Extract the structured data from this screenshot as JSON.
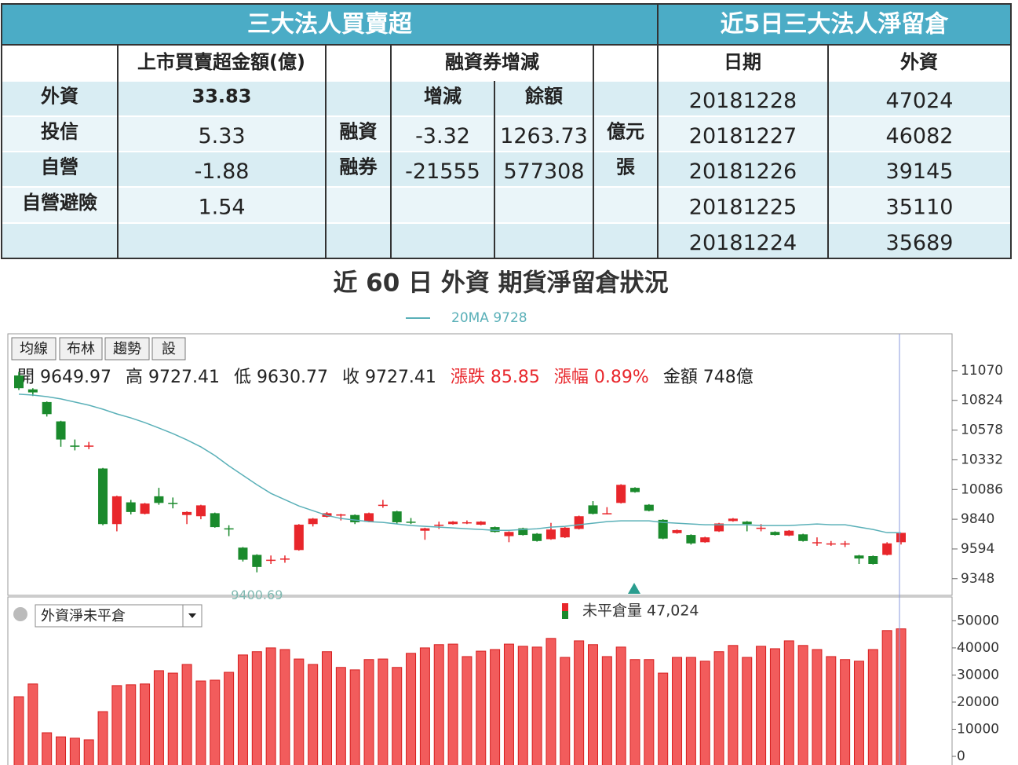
{
  "left_table": {
    "title": "三大法人買賣超",
    "header_1": "上市買賣超金額(億)",
    "header_2": "融資券增減",
    "rows": [
      [
        "外資",
        "33.83",
        null,
        "增減",
        "餘額",
        null
      ],
      [
        "投信",
        "5.33",
        "融資",
        "-3.32",
        "1263.73",
        "億元"
      ],
      [
        "自營",
        "-1.88",
        "融券",
        "-21555",
        "577308",
        "張"
      ],
      [
        "自營避險",
        "1.54",
        null,
        null,
        null,
        null
      ],
      [
        null,
        null,
        null,
        null,
        null,
        null
      ]
    ]
  },
  "right_table": {
    "title": "近5日三大法人淨留倉",
    "headers": [
      "日期",
      "外資"
    ],
    "rows": [
      [
        "20181228",
        47024
      ],
      [
        "20181227",
        46082
      ],
      [
        "20181226",
        39145
      ],
      [
        "20181225",
        35110
      ],
      [
        "20181224",
        35689
      ]
    ]
  },
  "page_title": "近 60 日 外資 期貨淨留倉狀況",
  "buttons": [
    "均線",
    "布林",
    "趨勢",
    "設"
  ],
  "info": [
    {
      "text": "開 9649.97",
      "color": "#222"
    },
    {
      "text": "高 9727.41",
      "color": "#222"
    },
    {
      "text": "低 9630.77",
      "color": "#222"
    },
    {
      "text": "收 9727.41",
      "color": "#222"
    },
    {
      "text": "漲跌 85.85",
      "color": "#e8262b"
    },
    {
      "text": "漲幅  0.89%",
      "color": "#e8262b"
    },
    {
      "text": "金額 748億",
      "color": "#222"
    }
  ],
  "chart_data": [
    {
      "type": "candlestick",
      "up_color": "#e8262b",
      "down_color": "#1a8a2c",
      "ylim": [
        9210,
        11375
      ],
      "yticks": [
        11070,
        10824,
        10578,
        10332,
        10086,
        9840,
        9594,
        9348
      ],
      "low_label": "9400.69",
      "open": [
        11030,
        10915,
        10810,
        10650,
        10450,
        10445,
        10260,
        9800,
        9980,
        9885,
        10030,
        9975,
        9875,
        9865,
        9890,
        9765,
        9605,
        9545,
        9500,
        9510,
        9585,
        9800,
        9860,
        9870,
        9875,
        9820,
        9955,
        9905,
        9820,
        9745,
        9790,
        9800,
        9810,
        9795,
        9775,
        9700,
        9765,
        9720,
        9675,
        9690,
        9760,
        9955,
        9890,
        9975,
        10100,
        9960,
        9835,
        9725,
        9710,
        9650,
        9740,
        9825,
        9820,
        9770,
        9735,
        9705,
        9715,
        9650,
        9640,
        9640,
        9540,
        9535,
        9545,
        9649.97
      ],
      "high": [
        11060,
        10925,
        10815,
        10655,
        10500,
        10480,
        10265,
        10035,
        10000,
        9975,
        10100,
        10020,
        9905,
        9960,
        9895,
        9790,
        9610,
        9550,
        9540,
        9540,
        9800,
        9850,
        9900,
        9885,
        9880,
        9895,
        10000,
        9910,
        9850,
        9770,
        9820,
        9825,
        9830,
        9825,
        9780,
        9740,
        9770,
        9725,
        9810,
        9775,
        9870,
        9990,
        9940,
        10130,
        10105,
        9965,
        9840,
        9755,
        9715,
        9695,
        9810,
        9850,
        9825,
        9800,
        9740,
        9750,
        9720,
        9690,
        9660,
        9660,
        9545,
        9540,
        9650,
        9727.41
      ],
      "low": [
        10910,
        10860,
        10690,
        10440,
        10410,
        10420,
        9790,
        9740,
        9880,
        9880,
        9960,
        9930,
        9800,
        9840,
        9770,
        9700,
        9490,
        9400.69,
        9470,
        9480,
        9580,
        9780,
        9855,
        9830,
        9800,
        9815,
        9935,
        9800,
        9800,
        9670,
        9760,
        9795,
        9800,
        9790,
        9730,
        9650,
        9705,
        9655,
        9670,
        9685,
        9755,
        9880,
        9880,
        9970,
        10060,
        9905,
        9675,
        9720,
        9630,
        9645,
        9735,
        9820,
        9740,
        9740,
        9705,
        9700,
        9655,
        9620,
        9620,
        9610,
        9470,
        9465,
        9540,
        9630.77
      ],
      "close": [
        10925,
        10890,
        10710,
        10500,
        10440,
        10450,
        9800,
        10030,
        9900,
        9970,
        9975,
        9970,
        9900,
        9955,
        9775,
        9760,
        9505,
        9445,
        9505,
        9515,
        9795,
        9845,
        9890,
        9880,
        9815,
        9890,
        9960,
        9815,
        9815,
        9765,
        9795,
        9820,
        9815,
        9820,
        9735,
        9735,
        9710,
        9660,
        9755,
        9770,
        9865,
        9885,
        9890,
        10125,
        10065,
        9910,
        9680,
        9750,
        9640,
        9690,
        9805,
        9845,
        9800,
        9770,
        9710,
        9745,
        9660,
        9650,
        9640,
        9640,
        9515,
        9470,
        9640,
        9727.41
      ],
      "ma": {
        "name": "20MA 9728",
        "color": "#5ab0b8",
        "values": [
          10875,
          10868,
          10855,
          10836,
          10810,
          10784,
          10751,
          10712,
          10679,
          10640,
          10595,
          10549,
          10497,
          10439,
          10367,
          10282,
          10204,
          10126,
          10054,
          10002,
          9950,
          9911,
          9872,
          9846,
          9833,
          9820,
          9814,
          9801,
          9788,
          9781,
          9775,
          9768,
          9761,
          9755,
          9748,
          9748,
          9755,
          9761,
          9775,
          9781,
          9794,
          9807,
          9820,
          9827,
          9827,
          9827,
          9814,
          9807,
          9801,
          9794,
          9794,
          9794,
          9794,
          9788,
          9788,
          9788,
          9794,
          9801,
          9794,
          9794,
          9775,
          9755,
          9729,
          9728
        ]
      }
    },
    {
      "type": "bar",
      "selector": "外資淨未平倉",
      "legend": "未平倉量 47,024",
      "color": "#f25c5c",
      "ylim": [
        0,
        58800
      ],
      "yticks": [
        0,
        10000,
        20000,
        30000,
        40000,
        50000
      ],
      "values": [
        22000,
        26700,
        8700,
        7200,
        6700,
        6100,
        16500,
        26100,
        26400,
        26700,
        31600,
        30700,
        33900,
        27800,
        28100,
        31000,
        37400,
        38600,
        40000,
        39400,
        35900,
        33900,
        38600,
        32800,
        31900,
        35700,
        35900,
        32800,
        38000,
        40000,
        41200,
        41400,
        36800,
        38800,
        39400,
        41400,
        40600,
        40300,
        43500,
        36500,
        42600,
        41200,
        36800,
        40300,
        35700,
        35700,
        30700,
        36500,
        36500,
        35100,
        38600,
        40900,
        36500,
        40600,
        39700,
        42600,
        40900,
        39400,
        36800,
        35700,
        35100,
        39400,
        46400,
        47024
      ]
    }
  ]
}
